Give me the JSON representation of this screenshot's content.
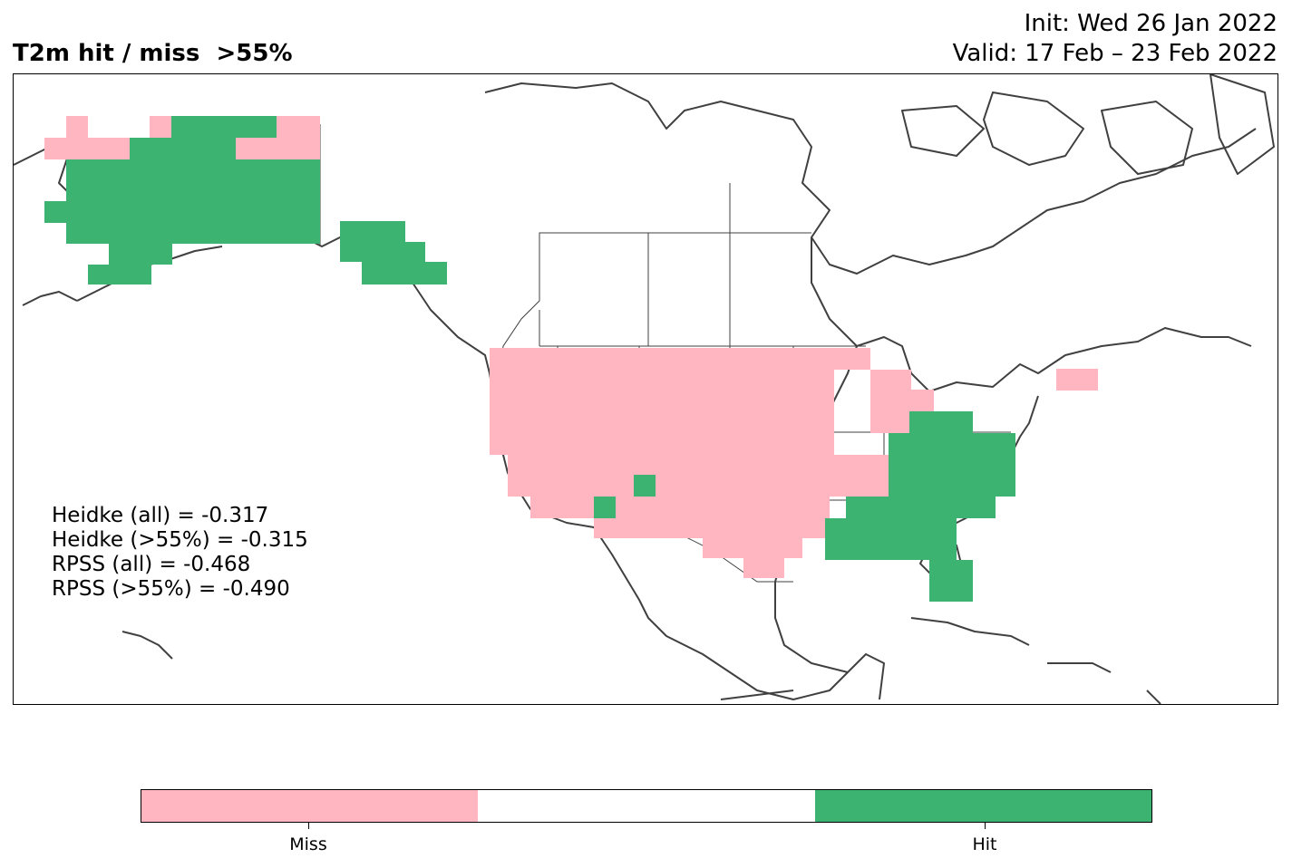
{
  "header": {
    "title": "T2m hit / miss  >55%",
    "init": "Init: Wed 26 Jan 2022",
    "valid": "Valid: 17 Feb – 23 Feb 2022"
  },
  "stats": {
    "heidke_all": "Heidke (all) = -0.317",
    "heidke_55": "Heidke (>55%) = -0.315",
    "rpss_all": "RPSS (all) = -0.468",
    "rpss_55": "RPSS (>55%) = -0.490"
  },
  "colorbar": {
    "miss_label": "Miss",
    "hit_label": "Hit",
    "miss_color": "#ffb6c1",
    "neutral_color": "#ffffff",
    "hit_color": "#3cb371"
  },
  "map": {
    "region": "North America",
    "coast_color": "#404040",
    "categories": [
      "miss",
      "hit"
    ]
  }
}
